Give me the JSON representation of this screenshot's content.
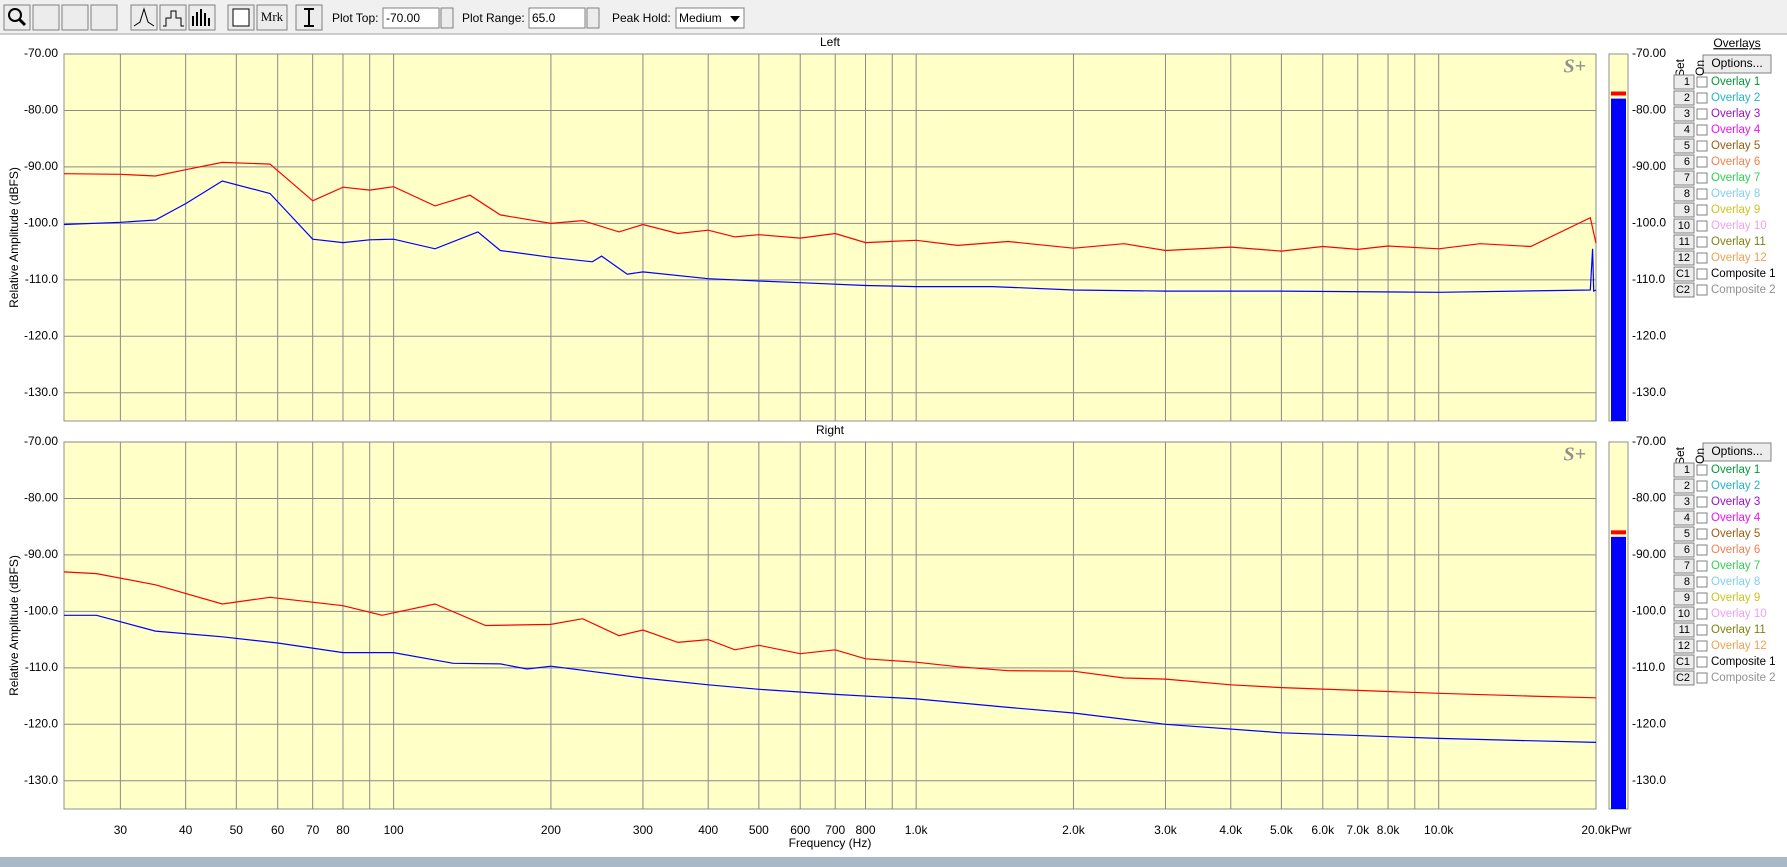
{
  "toolbar": {
    "plot_top_label": "Plot Top:",
    "plot_top": "-70.00",
    "plot_range_label": "Plot Range:",
    "plot_range": "65.0",
    "peak_hold_label": "Peak Hold:",
    "peak_hold": "Medium",
    "marker_button": "Mrk"
  },
  "x_axis": {
    "label": "Frequency (Hz)",
    "scale": "log",
    "xlim": [
      23.4,
      20000
    ],
    "xticks": [
      30,
      40,
      50,
      60,
      70,
      80,
      100,
      200,
      300,
      400,
      500,
      600,
      700,
      800,
      {
        "value": 1000,
        "label": "1.0k"
      },
      {
        "value": 2000,
        "label": "2.0k"
      },
      {
        "value": 3000,
        "label": "3.0k"
      },
      {
        "value": 4000,
        "label": "4.0k"
      },
      {
        "value": 5000,
        "label": "5.0k"
      },
      {
        "value": 6000,
        "label": "6.0k"
      },
      {
        "value": 7000,
        "label": "7.0k"
      },
      {
        "value": 8000,
        "label": "8.0k"
      },
      {
        "value": 10000,
        "label": "10.0k"
      },
      {
        "value": 20000,
        "label": "20.0k"
      }
    ],
    "xminor": [
      90,
      900,
      9000
    ]
  },
  "meter_label": "Pwr",
  "overlays_header": "Overlays",
  "options_label": "Options...",
  "set_label": "Set",
  "on_label": "On",
  "overlays": [
    {
      "set": "1",
      "name": "Overlay 1",
      "color": "#00993a"
    },
    {
      "set": "2",
      "name": "Overlay 2",
      "color": "#22b4c8"
    },
    {
      "set": "3",
      "name": "Overlay 3",
      "color": "#9a10c8"
    },
    {
      "set": "4",
      "name": "Overlay 4",
      "color": "#f010f0"
    },
    {
      "set": "5",
      "name": "Overlay 5",
      "color": "#9a5a10"
    },
    {
      "set": "6",
      "name": "Overlay 6",
      "color": "#f08050"
    },
    {
      "set": "7",
      "name": "Overlay 7",
      "color": "#30d050"
    },
    {
      "set": "8",
      "name": "Overlay 8",
      "color": "#80d0f0"
    },
    {
      "set": "9",
      "name": "Overlay 9",
      "color": "#d0c020"
    },
    {
      "set": "10",
      "name": "Overlay 10",
      "color": "#f0a0f0"
    },
    {
      "set": "11",
      "name": "Overlay 11",
      "color": "#808010"
    },
    {
      "set": "12",
      "name": "Overlay 12",
      "color": "#f0a050"
    },
    {
      "set": "C1",
      "name": "Composite 1",
      "color": "#000000"
    },
    {
      "set": "C2",
      "name": "Composite 2",
      "color": "#909090"
    }
  ],
  "panels": [
    {
      "title": "Left",
      "y_label": "Relative Amplitude (dBFS)",
      "logo": "S+",
      "ylim": [
        -135,
        -70
      ],
      "yticks": [
        {
          "value": -70,
          "label": "-70.00"
        },
        {
          "value": -80,
          "label": "-80.00"
        },
        {
          "value": -90,
          "label": "-90.00"
        },
        {
          "value": -100,
          "label": "-100.0"
        },
        {
          "value": -110,
          "label": "-110.0"
        },
        {
          "value": -120,
          "label": "-120.0"
        },
        {
          "value": -130,
          "label": "-130.0"
        }
      ],
      "meter": {
        "level": -77.9,
        "peak": -77
      },
      "series": [
        {
          "color": "#ff0000",
          "x": [
            23.4,
            30,
            35,
            40,
            47,
            58,
            70,
            80,
            90,
            100,
            120,
            140,
            160,
            200,
            230,
            270,
            300,
            350,
            400,
            450,
            500,
            600,
            700,
            800,
            1000,
            1200,
            1500,
            2000,
            2500,
            3000,
            4000,
            5000,
            6000,
            7000,
            8000,
            10000,
            12000,
            15000,
            19500,
            20000
          ],
          "values": [
            -91.2,
            -91.3,
            -91.6,
            -90.5,
            -89.2,
            -89.5,
            -96,
            -93.6,
            -94.1,
            -93.5,
            -96.9,
            -95,
            -98.5,
            -100,
            -99.5,
            -101.5,
            -100.2,
            -101.8,
            -101.2,
            -102.4,
            -102,
            -102.6,
            -101.8,
            -103.4,
            -103,
            -103.9,
            -103.2,
            -104.4,
            -103.6,
            -104.8,
            -104.2,
            -104.9,
            -104.1,
            -104.6,
            -104,
            -104.5,
            -103.6,
            -104.1,
            -99,
            -103.5
          ]
        },
        {
          "color": "#0000ff",
          "x": [
            23.4,
            30,
            35,
            40,
            47,
            58,
            70,
            80,
            90,
            100,
            120,
            145,
            160,
            200,
            240,
            250,
            280,
            300,
            400,
            500,
            600,
            800,
            1000,
            1400,
            2000,
            3000,
            5000,
            10000,
            19500,
            19700,
            19800,
            20000
          ],
          "values": [
            -100.2,
            -99.8,
            -99.4,
            -96.5,
            -92.5,
            -94.7,
            -102.8,
            -103.4,
            -102.9,
            -102.8,
            -104.5,
            -101.5,
            -104.8,
            -106,
            -106.8,
            -105.8,
            -109,
            -108.6,
            -109.8,
            -110.2,
            -110.5,
            -111,
            -111.2,
            -111.2,
            -111.8,
            -112,
            -112,
            -112.2,
            -111.8,
            -104.5,
            -112,
            -111.8
          ]
        }
      ]
    },
    {
      "title": "Right",
      "y_label": "Relative Amplitude (dBFS)",
      "logo": "S+",
      "ylim": [
        -135,
        -70
      ],
      "yticks": [
        {
          "value": -70,
          "label": "-70.00"
        },
        {
          "value": -80,
          "label": "-80.00"
        },
        {
          "value": -90,
          "label": "-90.00"
        },
        {
          "value": -100,
          "label": "-100.0"
        },
        {
          "value": -110,
          "label": "-110.0"
        },
        {
          "value": -120,
          "label": "-120.0"
        },
        {
          "value": -130,
          "label": "-130.0"
        }
      ],
      "meter": {
        "level": -86.8,
        "peak": -86
      },
      "series": [
        {
          "color": "#ff0000",
          "x": [
            23.4,
            27,
            35,
            47,
            58,
            80,
            95,
            120,
            150,
            200,
            230,
            270,
            300,
            350,
            400,
            450,
            500,
            600,
            700,
            800,
            1000,
            1200,
            1500,
            2000,
            2500,
            3000,
            4000,
            5000,
            7000,
            10000,
            15000,
            20000
          ],
          "values": [
            -93,
            -93.3,
            -95.3,
            -98.7,
            -97.5,
            -99,
            -100.7,
            -98.7,
            -102.5,
            -102.3,
            -101.3,
            -104.3,
            -103.3,
            -105.5,
            -105,
            -106.8,
            -106,
            -107.5,
            -106.8,
            -108.4,
            -109,
            -109.8,
            -110.5,
            -110.6,
            -111.8,
            -112,
            -113,
            -113.5,
            -114,
            -114.5,
            -115,
            -115.3
          ]
        },
        {
          "color": "#0000ff",
          "x": [
            23.4,
            27,
            35,
            47,
            60,
            80,
            100,
            130,
            160,
            180,
            200,
            300,
            400,
            500,
            700,
            1000,
            1500,
            2000,
            3000,
            5000,
            10000,
            20000
          ],
          "values": [
            -100.7,
            -100.7,
            -103.5,
            -104.5,
            -105.6,
            -107.3,
            -107.3,
            -109.2,
            -109.3,
            -110.2,
            -109.7,
            -111.8,
            -113,
            -113.8,
            -114.7,
            -115.5,
            -117,
            -118,
            -120,
            -121.5,
            -122.5,
            -123.2
          ]
        }
      ]
    }
  ]
}
